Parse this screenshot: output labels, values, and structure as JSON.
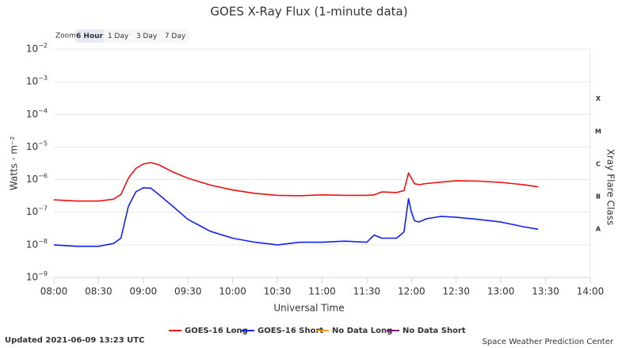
{
  "chart_data": {
    "type": "line",
    "title": "GOES X-Ray Flux (1-minute data)",
    "zoom": {
      "label": "Zoom",
      "buttons": [
        "6 Hour",
        "1 Day",
        "3 Day",
        "7 Day"
      ],
      "selected": 0
    },
    "x_label": "Universal Time",
    "y_label": "Watts · m⁻²",
    "y2_label": "Xray Flare Class",
    "log_y": true,
    "grid": true,
    "x": [
      "08:00",
      "08:15",
      "08:30",
      "08:40",
      "08:45",
      "08:50",
      "08:55",
      "09:00",
      "09:05",
      "09:10",
      "09:20",
      "09:30",
      "09:45",
      "10:00",
      "10:15",
      "10:30",
      "10:45",
      "11:00",
      "11:15",
      "11:30",
      "11:35",
      "11:40",
      "11:50",
      "11:55",
      "11:58",
      "12:00",
      "12:02",
      "12:05",
      "12:10",
      "12:20",
      "12:30",
      "12:45",
      "13:00",
      "13:15",
      "13:25"
    ],
    "xlim": [
      "08:00",
      "14:00"
    ],
    "xticks": [
      "08:00",
      "08:30",
      "09:00",
      "09:30",
      "10:00",
      "10:30",
      "11:00",
      "11:30",
      "12:00",
      "12:30",
      "13:00",
      "13:30",
      "14:00"
    ],
    "ylim": [
      1e-09,
      0.01
    ],
    "yticks": [
      {
        "value": 1e-09,
        "label": "10−9"
      },
      {
        "value": 1e-08,
        "label": "10−8"
      },
      {
        "value": 1e-07,
        "label": "10−7"
      },
      {
        "value": 1e-06,
        "label": "10−6"
      },
      {
        "value": 1e-05,
        "label": "10−5"
      },
      {
        "value": 0.0001,
        "label": "10−4"
      },
      {
        "value": 0.001,
        "label": "10−3"
      },
      {
        "value": 0.01,
        "label": "10−2"
      }
    ],
    "y2lim": [
      1e-09,
      0.01
    ],
    "y2ticks": [
      {
        "value": 3e-08,
        "label": "A"
      },
      {
        "value": 3e-07,
        "label": "B"
      },
      {
        "value": 3e-06,
        "label": "C"
      },
      {
        "value": 3e-05,
        "label": "M"
      },
      {
        "value": 0.0003,
        "label": "X"
      }
    ],
    "series": [
      {
        "name": "GOES-16 Long",
        "color": "#ee1111",
        "values": [
          2.4e-07,
          2.2e-07,
          2.2e-07,
          2.5e-07,
          3.5e-07,
          1.1e-06,
          2.2e-06,
          3e-06,
          3.3e-06,
          2.9e-06,
          1.7e-06,
          1.1e-06,
          6.8e-07,
          4.8e-07,
          3.8e-07,
          3.3e-07,
          3.2e-07,
          3.4e-07,
          3.3e-07,
          3.3e-07,
          3.4e-07,
          4.2e-07,
          4e-07,
          4.6e-07,
          1.6e-06,
          1.1e-06,
          7.5e-07,
          7e-07,
          7.6e-07,
          8.4e-07,
          9.2e-07,
          9e-07,
          8.2e-07,
          7e-07,
          6e-07
        ]
      },
      {
        "name": "GOES-16 Short",
        "color": "#1122ee",
        "values": [
          1e-08,
          9e-09,
          9e-09,
          1.1e-08,
          1.6e-08,
          1.5e-07,
          4.2e-07,
          5.6e-07,
          5.5e-07,
          3.6e-07,
          1.5e-07,
          6e-08,
          2.6e-08,
          1.6e-08,
          1.2e-08,
          1e-08,
          1.2e-08,
          1.2e-08,
          1.3e-08,
          1.2e-08,
          2e-08,
          1.6e-08,
          1.6e-08,
          2.5e-08,
          2.6e-07,
          1e-07,
          5.5e-08,
          5e-08,
          6.3e-08,
          7.5e-08,
          7e-08,
          6e-08,
          5e-08,
          3.6e-08,
          3e-08
        ]
      },
      {
        "name": "No Data Long",
        "color": "#f0a020",
        "values": [
          null,
          null,
          null,
          null,
          null,
          null,
          null,
          null,
          null,
          null,
          null,
          null,
          null,
          null,
          null,
          null,
          null,
          null,
          null,
          null,
          null,
          null,
          null,
          null,
          null,
          null,
          null,
          null,
          null,
          null,
          null,
          null,
          null,
          null,
          null
        ]
      },
      {
        "name": "No Data Short",
        "color": "#800080",
        "values": [
          null,
          null,
          null,
          null,
          null,
          null,
          null,
          null,
          null,
          null,
          null,
          null,
          null,
          null,
          null,
          null,
          null,
          null,
          null,
          null,
          null,
          null,
          null,
          null,
          null,
          null,
          null,
          null,
          null,
          null,
          null,
          null,
          null,
          null,
          null
        ]
      }
    ],
    "footer": {
      "updated": "Updated 2021-06-09 13:23 UTC",
      "credit": "Space Weather Prediction Center"
    }
  }
}
